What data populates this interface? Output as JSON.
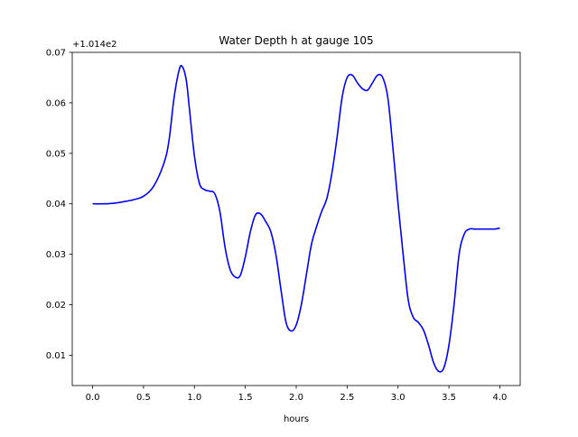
{
  "chart_data": {
    "type": "line",
    "title": "Water Depth h at gauge 105",
    "xlabel": "hours",
    "ylabel": "",
    "y_offset_label": "+1.014e2",
    "y_offset": 101.4,
    "xlim": [
      -0.2,
      4.2
    ],
    "ylim": [
      0.004,
      0.07
    ],
    "grid": false,
    "x_ticks": [
      0.0,
      0.5,
      1.0,
      1.5,
      2.0,
      2.5,
      3.0,
      3.5,
      4.0
    ],
    "x_tick_labels": [
      "0.0",
      "0.5",
      "1.0",
      "1.5",
      "2.0",
      "2.5",
      "3.0",
      "3.5",
      "4.0"
    ],
    "y_ticks": [
      0.01,
      0.02,
      0.03,
      0.04,
      0.05,
      0.06,
      0.07
    ],
    "y_tick_labels": [
      "0.01",
      "0.02",
      "0.03",
      "0.04",
      "0.05",
      "0.06",
      "0.07"
    ],
    "series": [
      {
        "color": "#0000ff",
        "x": [
          0.0,
          0.1,
          0.2,
          0.3,
          0.4,
          0.5,
          0.6,
          0.7,
          0.75,
          0.8,
          0.85,
          0.88,
          0.92,
          0.95,
          1.0,
          1.05,
          1.1,
          1.15,
          1.2,
          1.25,
          1.3,
          1.35,
          1.4,
          1.45,
          1.5,
          1.55,
          1.6,
          1.65,
          1.7,
          1.75,
          1.8,
          1.85,
          1.9,
          1.95,
          2.0,
          2.05,
          2.1,
          2.15,
          2.2,
          2.25,
          2.3,
          2.35,
          2.4,
          2.45,
          2.5,
          2.55,
          2.6,
          2.65,
          2.7,
          2.75,
          2.8,
          2.85,
          2.9,
          2.95,
          3.0,
          3.05,
          3.1,
          3.15,
          3.2,
          3.25,
          3.3,
          3.35,
          3.4,
          3.45,
          3.5,
          3.55,
          3.6,
          3.65,
          3.7,
          3.75,
          3.8,
          3.85,
          3.9,
          3.95,
          4.0
        ],
        "y": [
          0.04,
          0.04,
          0.0401,
          0.0404,
          0.0408,
          0.0415,
          0.0435,
          0.048,
          0.0525,
          0.061,
          0.0665,
          0.0672,
          0.0645,
          0.059,
          0.0495,
          0.044,
          0.0428,
          0.0425,
          0.042,
          0.0385,
          0.0315,
          0.027,
          0.0255,
          0.0258,
          0.0295,
          0.0345,
          0.0378,
          0.038,
          0.0365,
          0.0345,
          0.03,
          0.023,
          0.0165,
          0.0148,
          0.016,
          0.02,
          0.026,
          0.032,
          0.0355,
          0.0385,
          0.041,
          0.046,
          0.053,
          0.061,
          0.065,
          0.0655,
          0.064,
          0.0628,
          0.0625,
          0.064,
          0.0655,
          0.065,
          0.061,
          0.051,
          0.04,
          0.03,
          0.021,
          0.0175,
          0.0165,
          0.015,
          0.012,
          0.0085,
          0.0068,
          0.0075,
          0.012,
          0.02,
          0.03,
          0.034,
          0.035,
          0.035,
          0.035,
          0.035,
          0.035,
          0.035,
          0.0352
        ]
      }
    ]
  }
}
